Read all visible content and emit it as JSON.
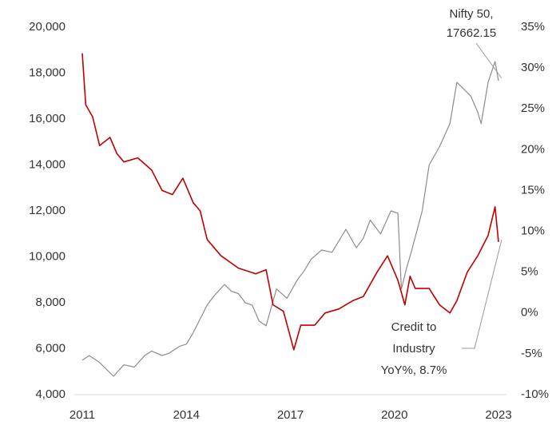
{
  "chart_data": {
    "type": "line",
    "xlim": [
      2011,
      2023
    ],
    "xticks": [
      2011,
      2014,
      2017,
      2020,
      2023
    ],
    "ylim": [
      4000,
      20000
    ],
    "yticks": [
      {
        "value": 4000,
        "label": "4,000"
      },
      {
        "value": 6000,
        "label": "6,000"
      },
      {
        "value": 8000,
        "label": "8,000"
      },
      {
        "value": 10000,
        "label": "10,000"
      },
      {
        "value": 12000,
        "label": "12,000"
      },
      {
        "value": 14000,
        "label": "14,000"
      },
      {
        "value": 16000,
        "label": "16,000"
      },
      {
        "value": 18000,
        "label": "18,000"
      },
      {
        "value": 20000,
        "label": "20,000"
      }
    ],
    "y2lim": [
      -10,
      35
    ],
    "y2ticks": [
      {
        "value": -10,
        "label": "-10%"
      },
      {
        "value": -5,
        "label": "-5%"
      },
      {
        "value": 0,
        "label": "0%"
      },
      {
        "value": 5,
        "label": "5%"
      },
      {
        "value": 10,
        "label": "10%"
      },
      {
        "value": 15,
        "label": "15%"
      },
      {
        "value": 20,
        "label": "20%"
      },
      {
        "value": 25,
        "label": "25%"
      },
      {
        "value": 30,
        "label": "30%"
      },
      {
        "value": 35,
        "label": "35%"
      }
    ],
    "series": [
      {
        "name": "Nifty 50",
        "color": "#8c8c8c",
        "axis": "y",
        "x": [
          2011.0,
          2011.2,
          2011.5,
          2011.7,
          2011.9,
          2012.2,
          2012.5,
          2012.8,
          2013.0,
          2013.3,
          2013.5,
          2013.8,
          2014.0,
          2014.2,
          2014.4,
          2014.6,
          2014.8,
          2015.1,
          2015.3,
          2015.5,
          2015.7,
          2015.9,
          2016.1,
          2016.3,
          2016.6,
          2016.9,
          2017.2,
          2017.4,
          2017.6,
          2017.9,
          2018.2,
          2018.4,
          2018.6,
          2018.9,
          2019.1,
          2019.3,
          2019.6,
          2019.9,
          2020.1,
          2020.2,
          2020.35,
          2020.5,
          2020.8,
          2021.0,
          2021.3,
          2021.6,
          2021.8,
          2022.0,
          2022.2,
          2022.4,
          2022.5,
          2022.7,
          2022.9,
          2023.0
        ],
        "values": [
          5500,
          5700,
          5400,
          5100,
          4800,
          5300,
          5200,
          5700,
          5900,
          5700,
          5800,
          6100,
          6200,
          6700,
          7300,
          7900,
          8300,
          8800,
          8500,
          8400,
          8000,
          7900,
          7200,
          7000,
          8600,
          8200,
          9000,
          9400,
          9900,
          10300,
          10200,
          10700,
          11200,
          10400,
          10800,
          11600,
          11000,
          12000,
          11900,
          8600,
          9500,
          10300,
          12000,
          14000,
          14800,
          15800,
          17600,
          17300,
          17000,
          16300,
          15800,
          17600,
          18500,
          17662
        ]
      },
      {
        "name": "Credit to Industry YoY%",
        "color": "#c00000",
        "axis": "y2",
        "x": [
          2011.0,
          2011.1,
          2011.3,
          2011.5,
          2011.8,
          2012.0,
          2012.2,
          2012.6,
          2013.0,
          2013.3,
          2013.6,
          2013.9,
          2014.2,
          2014.4,
          2014.6,
          2015.0,
          2015.5,
          2016.0,
          2016.3,
          2016.5,
          2016.8,
          2017.1,
          2017.3,
          2017.7,
          2018.0,
          2018.4,
          2018.8,
          2019.1,
          2019.5,
          2019.8,
          2020.1,
          2020.3,
          2020.45,
          2020.6,
          2021.0,
          2021.3,
          2021.6,
          2021.8,
          2022.1,
          2022.4,
          2022.7,
          2022.9,
          2023.0
        ],
        "values": [
          31.8,
          25.5,
          24.0,
          20.5,
          21.5,
          19.5,
          18.5,
          19.0,
          17.5,
          15.0,
          14.5,
          16.5,
          13.5,
          12.5,
          9.0,
          7.0,
          5.5,
          4.8,
          5.3,
          1.0,
          0.2,
          -4.5,
          -1.5,
          -1.5,
          0.0,
          0.5,
          1.5,
          2.0,
          5.0,
          7.0,
          4.0,
          1.0,
          4.5,
          3.0,
          3.0,
          1.0,
          0.0,
          1.5,
          5.0,
          7.0,
          9.5,
          13.0,
          8.7
        ]
      }
    ],
    "annotations": [
      {
        "lines": [
          "Nifty 50,",
          "17662.15"
        ]
      },
      {
        "lines": [
          "Credit to",
          "Industry",
          "YoY%, 8.7%"
        ]
      }
    ]
  }
}
